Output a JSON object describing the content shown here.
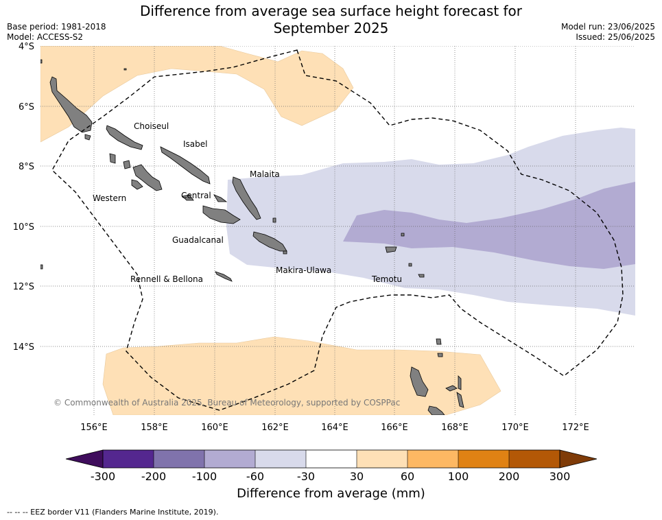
{
  "title_line1": "Difference from average sea surface height forecast for",
  "title_line2": "September 2025",
  "base_period": "Base period: 1981-2018",
  "model": "Model: ACCESS-S2",
  "model_run": "Model run: 23/06/2025",
  "issued": "Issued: 25/06/2025",
  "lat_labels": [
    "4°S",
    "6°S",
    "8°S",
    "10°S",
    "12°S",
    "14°S"
  ],
  "lon_labels": [
    "156°E",
    "158°E",
    "160°E",
    "162°E",
    "164°E",
    "166°E",
    "168°E",
    "170°E",
    "172°E"
  ],
  "places": {
    "choiseul": "Choiseul",
    "isabel": "Isabel",
    "malaita": "Malaita",
    "western": "Western",
    "central": "Central",
    "guadalcanal": "Guadalcanal",
    "makira": "Makira-Ulawa",
    "temotu": "Temotu",
    "rennell": "Rennell & Bellona"
  },
  "copyright": "© Commonwealth of Australia 2025, Bureau of Meteorology, supported by COSPPac",
  "colorbar": {
    "ticks": [
      "-300",
      "-200",
      "-100",
      "-60",
      "-30",
      "30",
      "60",
      "100",
      "200",
      "300"
    ],
    "colors": [
      "#3f0d5c",
      "#54278f",
      "#8073ac",
      "#b2abd2",
      "#d8daeb",
      "#ffffff",
      "#fee0b6",
      "#fdb863",
      "#e08214",
      "#b35806",
      "#7f3b08"
    ],
    "label": "Difference from average (mm)"
  },
  "eez_note": "--  --  -- EEZ border V11 (Flanders Marine Institute, 2019)."
}
